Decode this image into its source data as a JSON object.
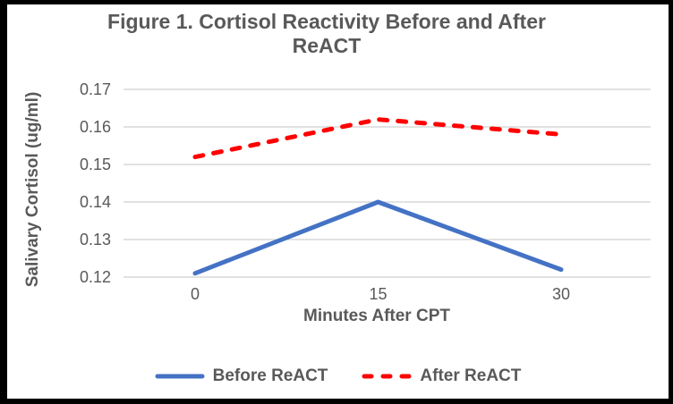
{
  "window": {
    "background": "#FFFFFF",
    "frame_border_color": "#000000"
  },
  "title": {
    "line1": "Figure 1. Cortisol Reactivity Before and After",
    "line2": "ReACT"
  },
  "colors": {
    "text": "#595959",
    "gridline": "#D9D9D9",
    "series_blue": "#4472C4",
    "series_red": "#FF0000"
  },
  "chart_data": {
    "type": "line",
    "title": "Figure 1. Cortisol Reactivity Before and After ReACT",
    "categories": [
      "0",
      "15",
      "30"
    ],
    "xlabel": "Minutes After CPT",
    "ylabel": "Salivary Cortisol (ug/ml)",
    "ylim": [
      0.12,
      0.17
    ],
    "yticks": [
      0.12,
      0.13,
      0.14,
      0.15,
      0.16,
      0.17
    ],
    "ytick_decimals": 2,
    "grid": true,
    "legend_position": "bottom",
    "series": [
      {
        "name": "Before ReACT",
        "color": "#4472C4",
        "line_style": "solid",
        "values": [
          0.121,
          0.14,
          0.122
        ]
      },
      {
        "name": "After ReACT",
        "color": "#FF0000",
        "line_style": "dashed",
        "values": [
          0.152,
          0.162,
          0.158
        ]
      }
    ]
  }
}
